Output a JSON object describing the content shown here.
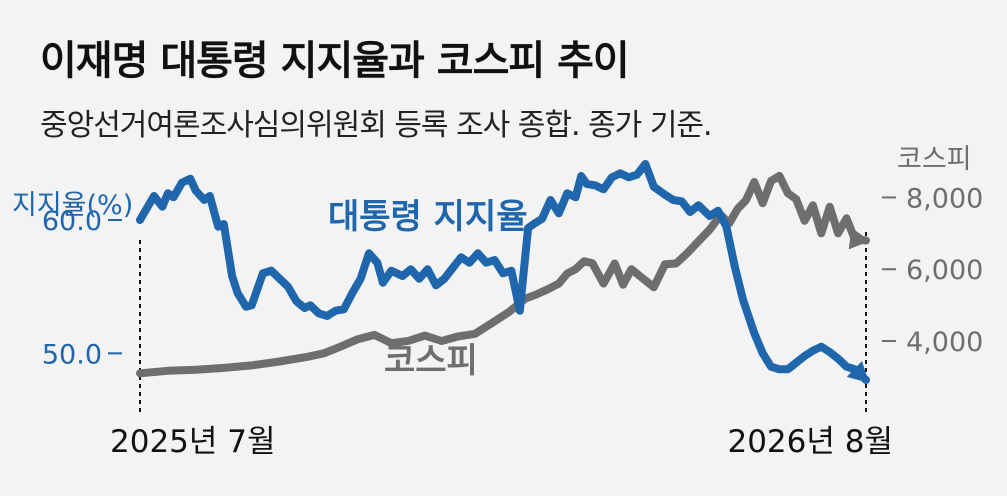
{
  "title": "이재명 대통령 지지율과 코스피 추이",
  "subtitle": "중앙선거여론조사심의위원회 등록 조사 종합. 종가 기준.",
  "chart_data": {
    "type": "line",
    "x_start_label": "2025년 7월",
    "x_end_label": "2026년 8월",
    "x_range": [
      0,
      13
    ],
    "left_axis": {
      "label": "지지율(%)",
      "range": [
        45,
        66
      ],
      "ticks": [
        {
          "v": 60,
          "t": "60.0"
        },
        {
          "v": 50,
          "t": "50.0"
        }
      ]
    },
    "right_axis": {
      "label": "코스피",
      "range": [
        1800,
        9600
      ],
      "ticks": [
        {
          "v": 8000,
          "t": "8,000"
        },
        {
          "v": 6000,
          "t": "6,000"
        },
        {
          "v": 4000,
          "t": "4,000"
        }
      ]
    },
    "series": [
      {
        "name": "대통령 지지율",
        "axis": "left",
        "color": "#1f66ad",
        "x": [
          0,
          0.25,
          0.4,
          0.5,
          0.6,
          0.75,
          0.9,
          1.0,
          1.15,
          1.25,
          1.4,
          1.5,
          1.65,
          1.75,
          1.9,
          2.0,
          2.2,
          2.35,
          2.5,
          2.65,
          2.8,
          2.95,
          3.05,
          3.2,
          3.35,
          3.5,
          3.65,
          3.8,
          3.95,
          4.1,
          4.25,
          4.35,
          4.5,
          4.7,
          4.85,
          5.0,
          5.15,
          5.3,
          5.45,
          5.6,
          5.75,
          5.9,
          6.05,
          6.2,
          6.35,
          6.5,
          6.65,
          6.8,
          6.95,
          7.05,
          7.2,
          7.35,
          7.5,
          7.65,
          7.8,
          7.9,
          8.0,
          8.15,
          8.3,
          8.45,
          8.6,
          8.75,
          8.9,
          9.05,
          9.2,
          9.4,
          9.55,
          9.7,
          9.85,
          10.0,
          10.2,
          10.35,
          10.5,
          10.65,
          10.8,
          11.0,
          11.15,
          11.3,
          11.45,
          11.6,
          11.75,
          11.9,
          12.05,
          12.2,
          12.35,
          12.5,
          12.65,
          12.8,
          13.0
        ],
        "values": [
          60.0,
          61.8,
          61.0,
          62.0,
          61.7,
          62.8,
          63.1,
          62.2,
          61.5,
          61.8,
          59.5,
          59.7,
          55.8,
          54.5,
          53.5,
          53.6,
          56.0,
          56.2,
          55.6,
          55.0,
          53.9,
          53.4,
          53.6,
          53.0,
          52.8,
          53.2,
          53.3,
          54.5,
          55.6,
          57.5,
          56.8,
          55.3,
          56.2,
          55.8,
          56.3,
          55.6,
          56.3,
          55.1,
          55.6,
          56.4,
          57.2,
          56.8,
          57.5,
          56.8,
          57.0,
          56.0,
          56.2,
          53.2,
          59.4,
          59.7,
          60.1,
          61.5,
          60.5,
          62.0,
          61.7,
          63.3,
          62.7,
          62.6,
          62.3,
          63.2,
          63.5,
          63.2,
          63.4,
          64.2,
          62.5,
          61.9,
          61.5,
          61.4,
          60.6,
          61.1,
          60.3,
          60.7,
          59.5,
          56.5,
          54.0,
          51.5,
          50.0,
          49.0,
          48.8,
          48.8,
          49.3,
          49.8,
          50.2,
          50.5,
          50.1,
          49.6,
          49.0,
          48.8,
          48.0
        ]
      },
      {
        "name": "코스피",
        "axis": "right",
        "color": "#6e6e6e",
        "x": [
          0,
          0.5,
          1.0,
          1.5,
          2.0,
          2.5,
          3.0,
          3.3,
          3.6,
          3.9,
          4.2,
          4.5,
          4.8,
          5.1,
          5.4,
          5.7,
          6.0,
          6.3,
          6.6,
          6.9,
          7.1,
          7.3,
          7.5,
          7.65,
          7.8,
          7.95,
          8.1,
          8.3,
          8.5,
          8.65,
          8.8,
          9.0,
          9.2,
          9.4,
          9.6,
          9.8,
          10.0,
          10.2,
          10.4,
          10.55,
          10.7,
          10.85,
          11.0,
          11.15,
          11.3,
          11.45,
          11.6,
          11.75,
          11.9,
          12.05,
          12.2,
          12.35,
          12.5,
          12.65,
          12.8,
          13.0
        ],
        "values": [
          3100,
          3170,
          3200,
          3250,
          3320,
          3430,
          3560,
          3660,
          3850,
          4050,
          4170,
          3940,
          4000,
          4150,
          4000,
          4130,
          4200,
          4500,
          4800,
          5180,
          5300,
          5440,
          5600,
          5880,
          6000,
          6220,
          6170,
          5600,
          6160,
          5570,
          6000,
          5750,
          5500,
          6140,
          6160,
          6450,
          6780,
          7100,
          7510,
          7280,
          7680,
          7920,
          8430,
          7840,
          8460,
          8600,
          8120,
          7950,
          7350,
          7780,
          7000,
          7740,
          7000,
          7420,
          6840,
          6800
        ]
      }
    ],
    "series_labels": [
      {
        "series": "대통령 지지율",
        "text": "대통령 지지율"
      },
      {
        "series": "코스피",
        "text": "코스피"
      }
    ],
    "grid": false
  }
}
